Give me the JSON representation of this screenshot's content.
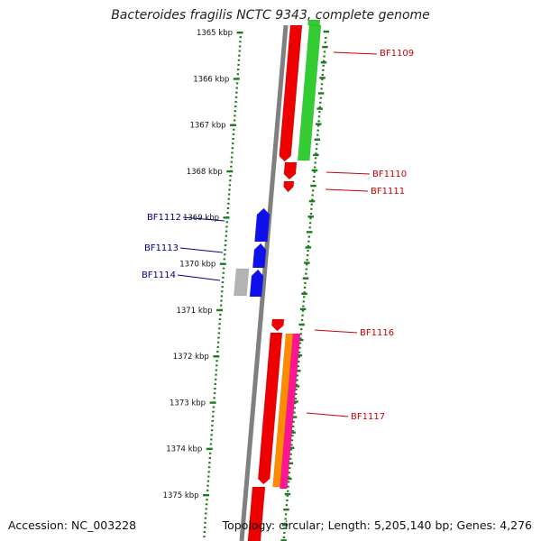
{
  "title": "Bacteroides fragilis NCTC 9343, complete genome",
  "footer": {
    "accession": "Accession: NC_003228",
    "summary": "Topology: circular; Length: 5,205,140 bp; Genes: 4,276"
  },
  "colors": {
    "backbone": "#808080",
    "tick": "#1f7a1f",
    "label_forward": "#cc0000",
    "label_reverse": "#00008b",
    "red": "#ee0000",
    "green": "#33cc33",
    "blue": "#1010ee",
    "gray": "#b4b4b4",
    "orange": "#ff8c00",
    "pink": "#ff1493"
  },
  "scale": {
    "unit": "kbp",
    "major_ticks_kbp": [
      1365,
      1366,
      1367,
      1368,
      1369,
      1370,
      1371,
      1372,
      1373,
      1374,
      1375
    ]
  },
  "genes": [
    {
      "label": "BF1109",
      "strand": "+"
    },
    {
      "label": "BF1110",
      "strand": "+"
    },
    {
      "label": "BF1111",
      "strand": "+"
    },
    {
      "label": "BF1112",
      "strand": "-"
    },
    {
      "label": "BF1113",
      "strand": "-"
    },
    {
      "label": "BF1114",
      "strand": "-"
    },
    {
      "label": "BF1116",
      "strand": "+"
    },
    {
      "label": "BF1117",
      "strand": "+"
    }
  ]
}
